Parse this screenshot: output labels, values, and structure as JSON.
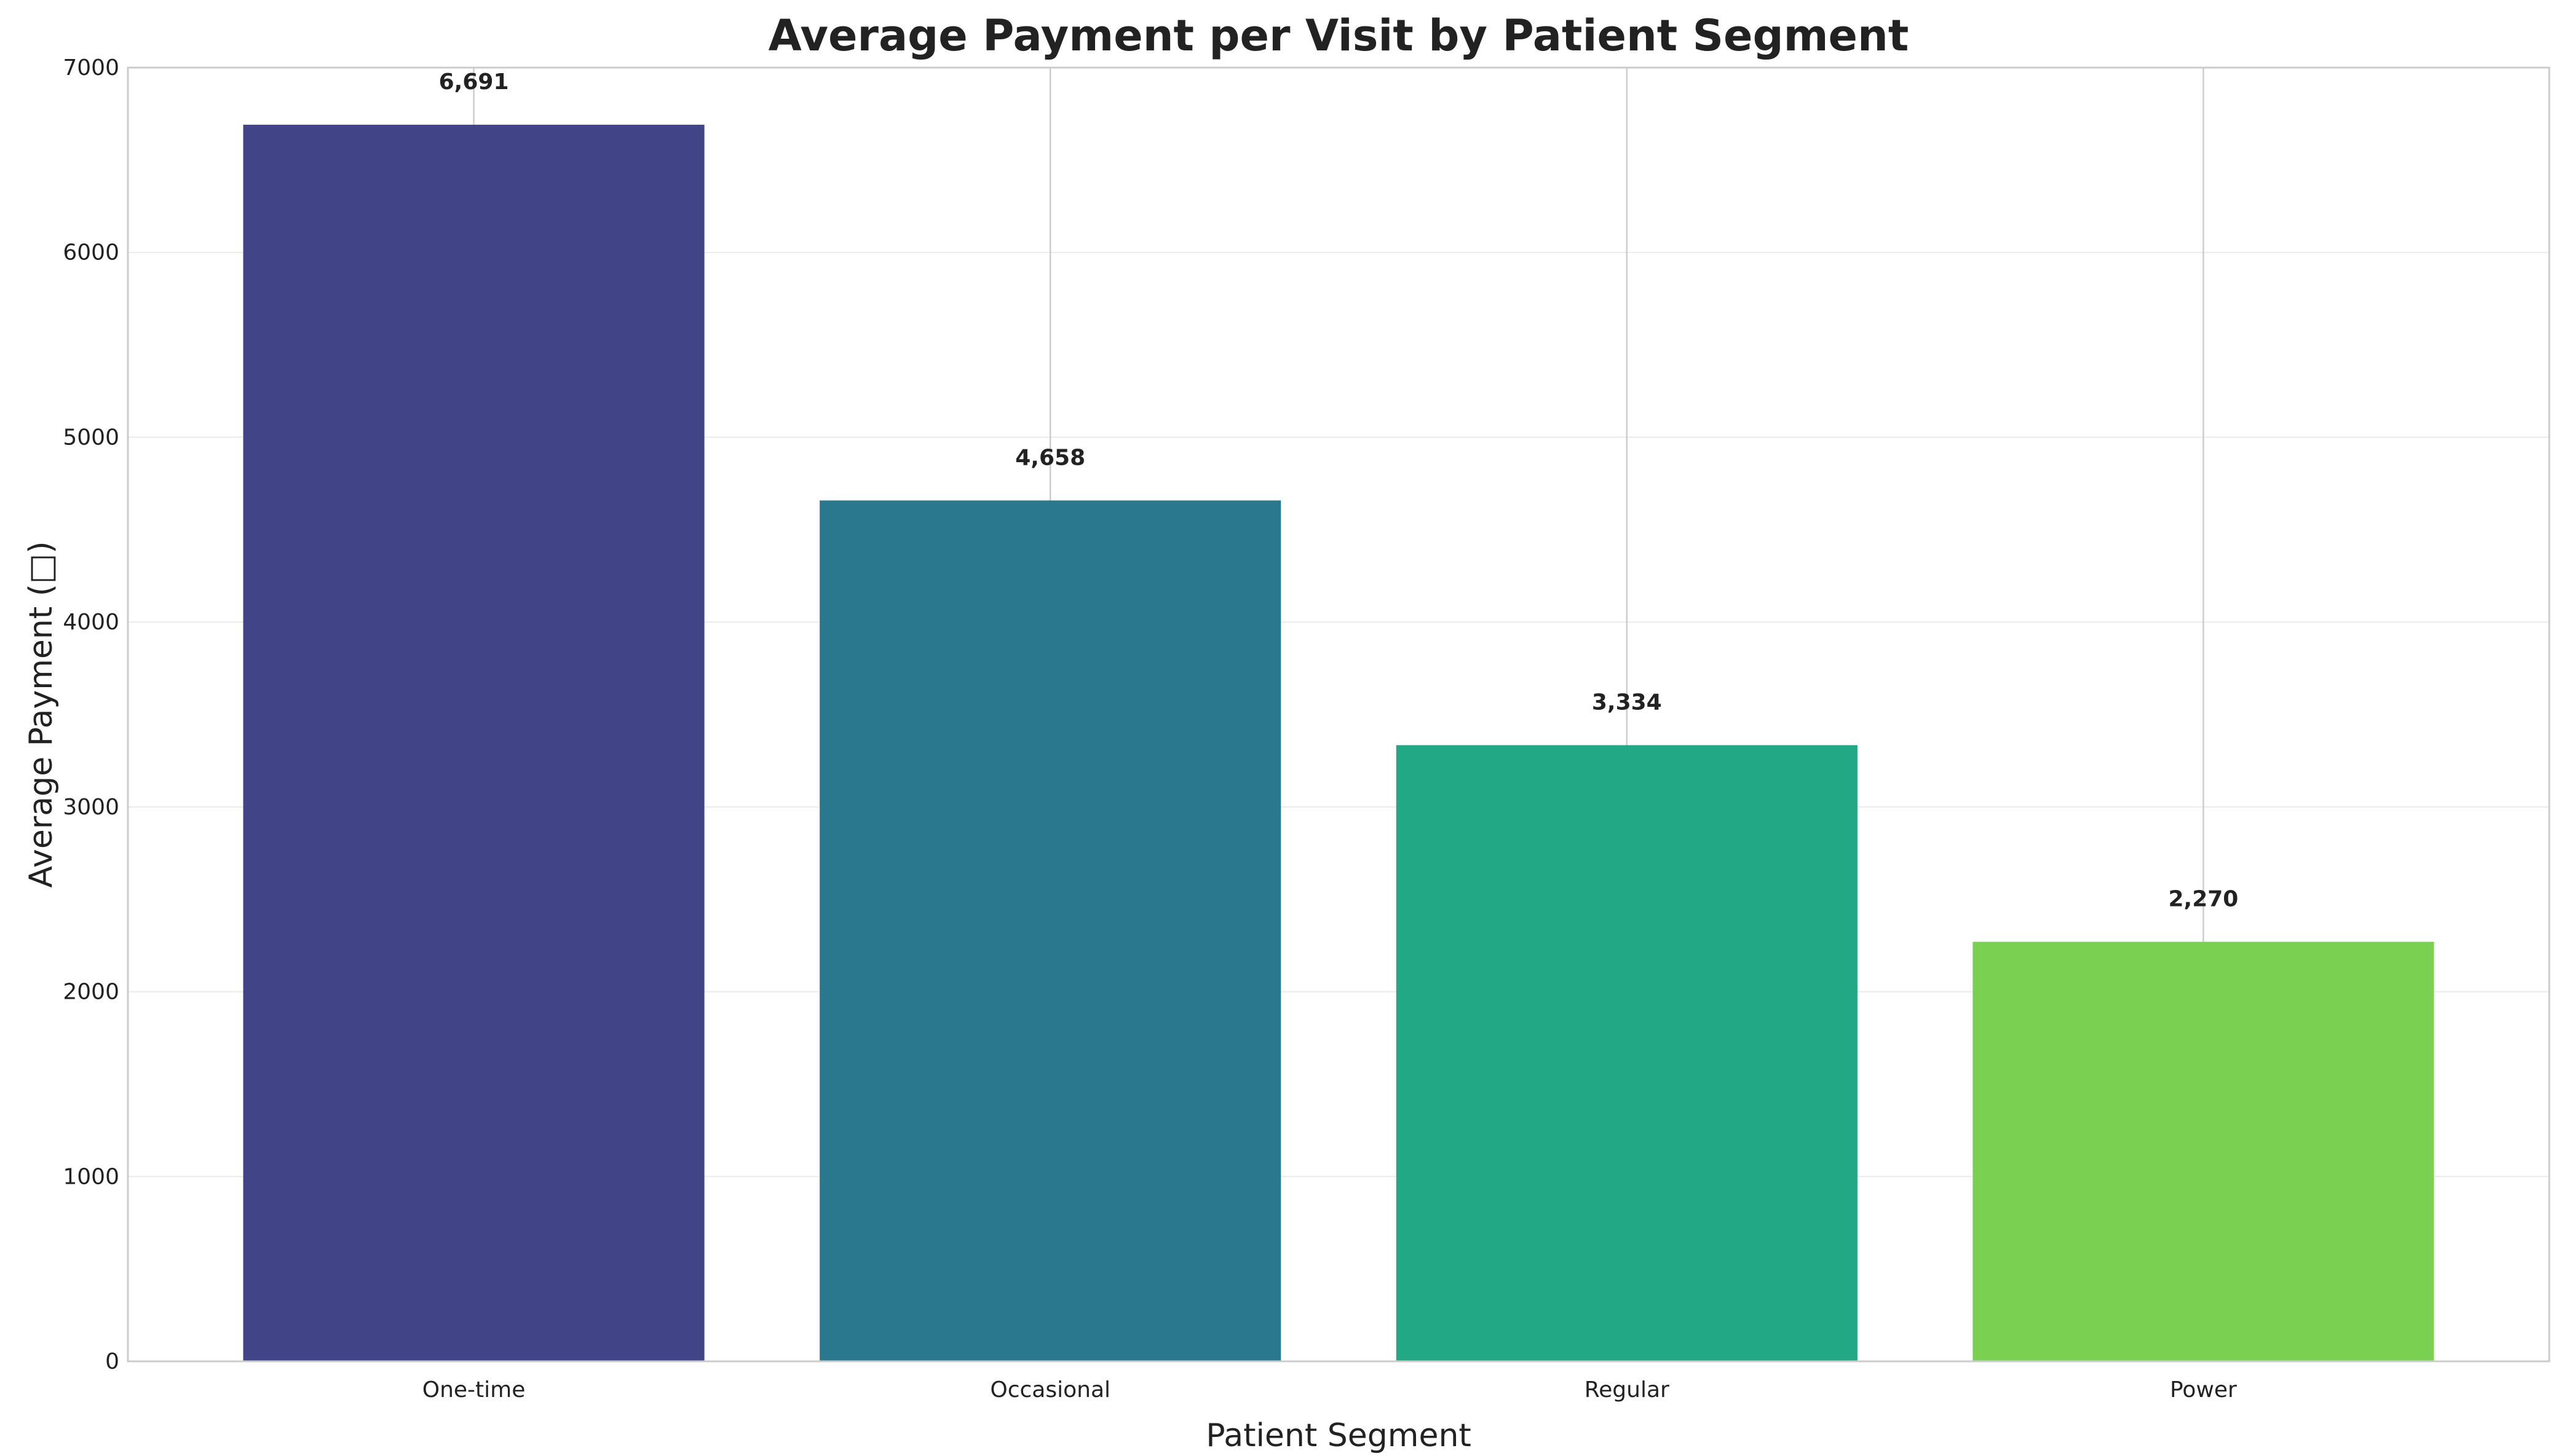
{
  "chart_data": {
    "type": "bar",
    "title": "Average Payment per Visit by Patient Segment",
    "xlabel": "Patient Segment",
    "ylabel": "Average Payment (□)",
    "categories": [
      "One-time",
      "Occasional",
      "Regular",
      "Power"
    ],
    "values": [
      6691,
      4658,
      3334,
      2270
    ],
    "value_labels": [
      "6,691",
      "4,658",
      "3,334",
      "2,270"
    ],
    "colors": [
      "#414487",
      "#2a788e",
      "#22a884",
      "#7ad151"
    ],
    "ylim": [
      0,
      7000
    ],
    "yticks": [
      0,
      1000,
      2000,
      3000,
      4000,
      5000,
      6000,
      7000
    ],
    "ytick_labels": [
      "0",
      "1000",
      "2000",
      "3000",
      "4000",
      "5000",
      "6000",
      "7000"
    ],
    "grid": true,
    "legend": "none"
  }
}
